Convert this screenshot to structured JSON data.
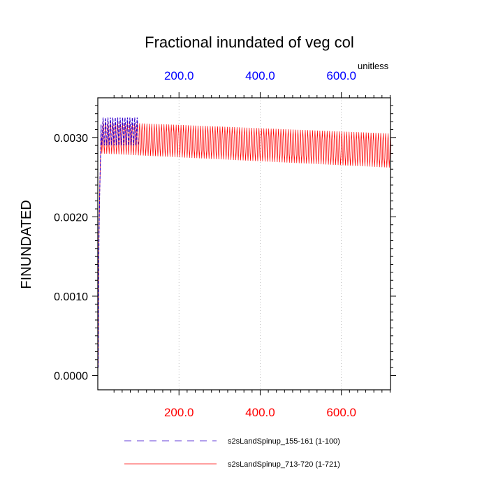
{
  "chart_data": {
    "type": "line",
    "title": "Fractional inundated of veg col",
    "units_label": "unitless",
    "ylabel": "FINUNDATED",
    "xlabel": "",
    "xlim": [
      0,
      721
    ],
    "ylim": [
      -0.00018,
      0.0035
    ],
    "y_ticks": [
      0.0,
      0.001,
      0.002,
      0.003
    ],
    "y_tick_labels": [
      "0.0000",
      "0.0010",
      "0.0020",
      "0.0030"
    ],
    "x_ticks": [
      200,
      400,
      600
    ],
    "x_tick_labels": [
      "200.0",
      "400.0",
      "600.0"
    ],
    "grid": "dotted vertical lines at x ticks",
    "bottom_tick_color": "#ff0000",
    "top_tick_color": "#0000ff",
    "series": [
      {
        "name": "s2sLandSpinup_155-161 (1-100)",
        "color": "#3300cc",
        "style": "dashed",
        "x_range": [
          1,
          100
        ],
        "spinup_values": [
          0.0001,
          0.0012,
          0.0018,
          0.0021,
          0.0024,
          0.0026,
          0.0028
        ],
        "cycle_high": 0.00325,
        "cycle_low": 0.0029,
        "cycle_period": 6
      },
      {
        "name": "s2sLandSpinup_713-720 (1-721)",
        "color": "#ff0000",
        "style": "solid",
        "x_range": [
          1,
          721
        ],
        "spinup_values": [
          0.0001,
          0.0012,
          0.0018,
          0.0021,
          0.0024,
          0.0026,
          0.0028
        ],
        "cycle_high_start": 0.0032,
        "cycle_high_end": 0.00305,
        "cycle_low_start": 0.0028,
        "cycle_low_end": 0.00262,
        "cycle_period": 6
      }
    ]
  }
}
